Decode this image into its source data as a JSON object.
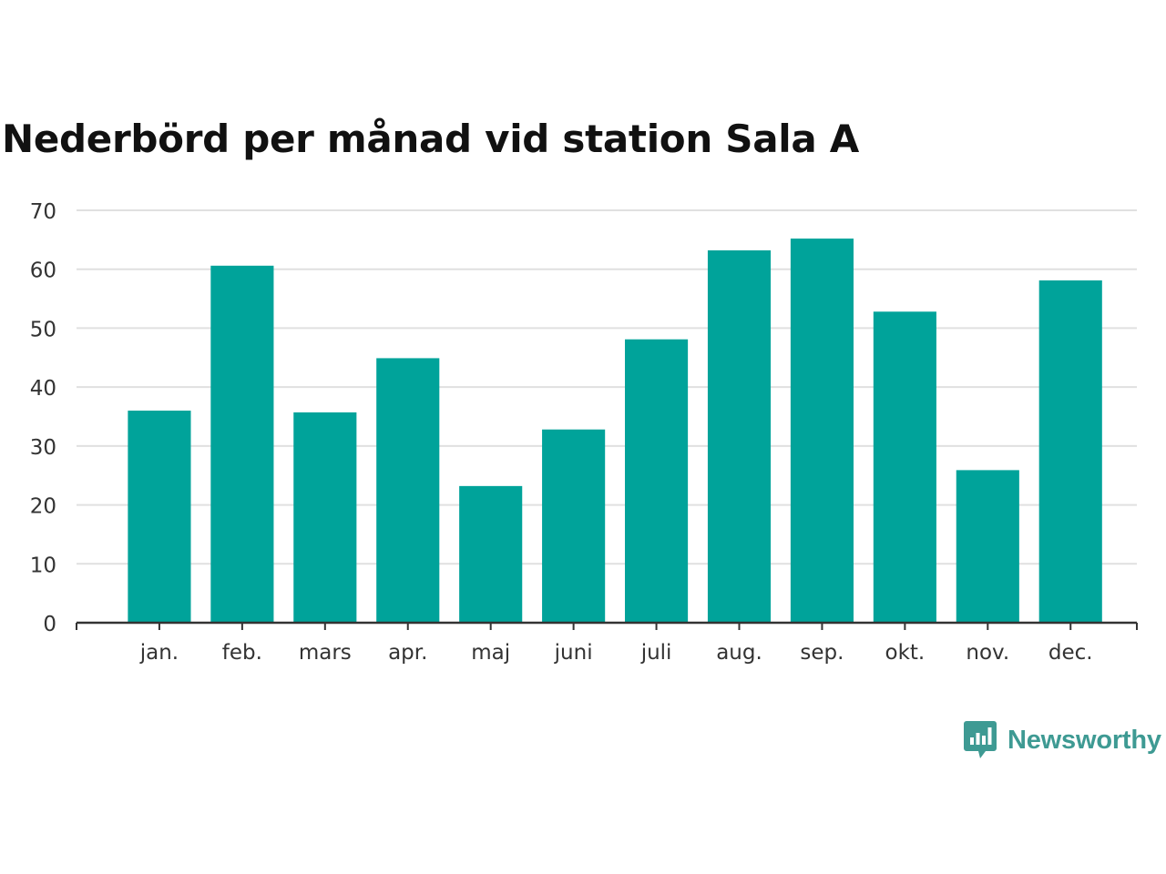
{
  "colors": {
    "bar": "#00a39a",
    "grid": "#e0e0e0",
    "axis": "#333333",
    "text": "#333333",
    "brand": "#3e9a93"
  },
  "brand": {
    "name": "Newsworthy",
    "icon": "newsworthy-logo-icon"
  },
  "chart_data": {
    "type": "bar",
    "title": "Nederbörd per månad vid station Sala A",
    "xlabel": "",
    "ylabel": "",
    "categories": [
      "jan.",
      "feb.",
      "mars",
      "apr.",
      "maj",
      "juni",
      "juli",
      "aug.",
      "sep.",
      "okt.",
      "nov.",
      "dec."
    ],
    "values": [
      36.0,
      60.6,
      35.7,
      44.9,
      23.2,
      32.8,
      48.1,
      63.2,
      65.2,
      52.8,
      25.9,
      58.1
    ],
    "ylim": [
      0,
      70
    ],
    "yticks": [
      0,
      10,
      20,
      30,
      40,
      50,
      60,
      70
    ],
    "grid": true,
    "legend": "none"
  }
}
